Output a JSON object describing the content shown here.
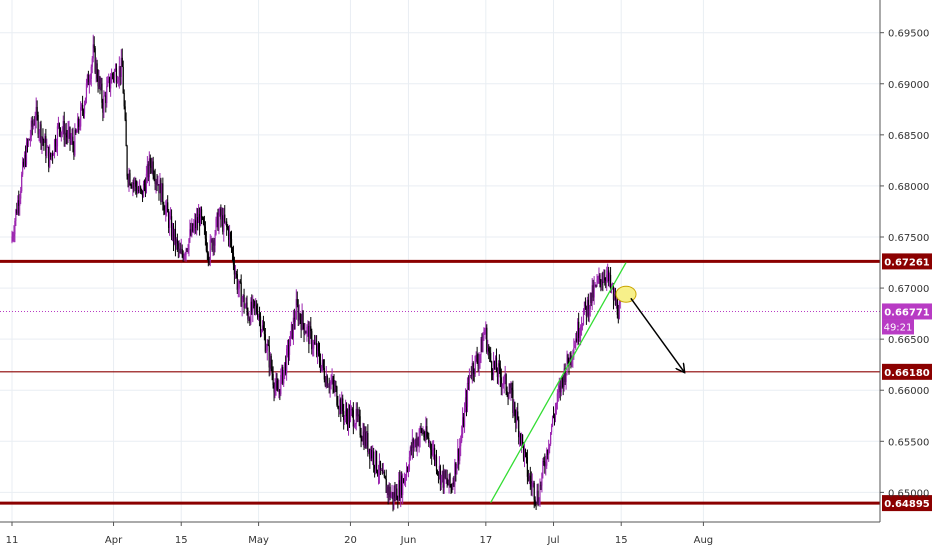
{
  "chart_data": {
    "type": "candlestick",
    "title": "",
    "xlabel": "",
    "ylabel": "",
    "ylim": [
      0.6471,
      0.6982
    ],
    "grid": true,
    "colors": {
      "up": "#9c27b0",
      "down": "#000000",
      "level": "#8b0000",
      "price_line": "#b83bc4",
      "trendline": "#33dd33",
      "axis_text": "#333333",
      "grid": "#e9eef3"
    },
    "x_axis_labels": [
      "11",
      "Apr",
      "15",
      "May",
      "20",
      "Jun",
      "17",
      "Jul",
      "15",
      "Aug"
    ],
    "y_axis_labels": [
      "0.69500",
      "0.69000",
      "0.68500",
      "0.68000",
      "0.67500",
      "0.67000",
      "0.66500",
      "0.66000",
      "0.65500",
      "0.65000"
    ],
    "y_axis_values": [
      0.695,
      0.69,
      0.685,
      0.68,
      0.675,
      0.67,
      0.665,
      0.66,
      0.655,
      0.65
    ],
    "x_axis_dates": [
      "2019-03-11",
      "2019-04-01",
      "2019-04-15",
      "2019-05-01",
      "2019-05-20",
      "2019-06-01",
      "2019-06-17",
      "2019-07-01",
      "2019-07-15",
      "2019-08-01"
    ],
    "price_levels": [
      {
        "label": "0.67261",
        "value": 0.67261,
        "style": "thick"
      },
      {
        "label": "0.66180",
        "value": 0.6618,
        "style": "thin"
      },
      {
        "label": "0.64895",
        "value": 0.64895,
        "style": "thick"
      }
    ],
    "current_price": {
      "label": "0.66771",
      "value": 0.66771,
      "countdown": "49:21"
    },
    "price_path": [
      [
        "2019-03-11",
        0.6745
      ],
      [
        "2019-03-14",
        0.683
      ],
      [
        "2019-03-16",
        0.687
      ],
      [
        "2019-03-19",
        0.6825
      ],
      [
        "2019-03-21",
        0.686
      ],
      [
        "2019-03-24",
        0.684
      ],
      [
        "2019-03-26",
        0.688
      ],
      [
        "2019-03-28",
        0.693
      ],
      [
        "2019-03-30",
        0.688
      ],
      [
        "2019-04-01",
        0.691
      ],
      [
        "2019-04-03",
        0.6915
      ],
      [
        "2019-04-04",
        0.6815
      ],
      [
        "2019-04-07",
        0.679
      ],
      [
        "2019-04-09",
        0.6825
      ],
      [
        "2019-04-11",
        0.6795
      ],
      [
        "2019-04-13",
        0.676
      ],
      [
        "2019-04-15",
        0.673
      ],
      [
        "2019-04-17",
        0.675
      ],
      [
        "2019-04-19",
        0.677
      ],
      [
        "2019-04-21",
        0.6735
      ],
      [
        "2019-04-23",
        0.677
      ],
      [
        "2019-04-25",
        0.6755
      ],
      [
        "2019-04-27",
        0.67
      ],
      [
        "2019-04-29",
        0.6675
      ],
      [
        "2019-05-01",
        0.668
      ],
      [
        "2019-05-03",
        0.664
      ],
      [
        "2019-05-05",
        0.6595
      ],
      [
        "2019-05-07",
        0.663
      ],
      [
        "2019-05-09",
        0.668
      ],
      [
        "2019-05-11",
        0.666
      ],
      [
        "2019-05-13",
        0.664
      ],
      [
        "2019-05-15",
        0.6615
      ],
      [
        "2019-05-17",
        0.66
      ],
      [
        "2019-05-19",
        0.6575
      ],
      [
        "2019-05-21",
        0.6575
      ],
      [
        "2019-05-23",
        0.6555
      ],
      [
        "2019-05-25",
        0.6535
      ],
      [
        "2019-05-27",
        0.651
      ],
      [
        "2019-05-29",
        0.6495
      ],
      [
        "2019-05-31",
        0.651
      ],
      [
        "2019-06-02",
        0.6545
      ],
      [
        "2019-06-04",
        0.656
      ],
      [
        "2019-06-06",
        0.6545
      ],
      [
        "2019-06-08",
        0.6515
      ],
      [
        "2019-06-10",
        0.6505
      ],
      [
        "2019-06-12",
        0.655
      ],
      [
        "2019-06-14",
        0.662
      ],
      [
        "2019-06-16",
        0.6635
      ],
      [
        "2019-06-17",
        0.666
      ],
      [
        "2019-06-18",
        0.663
      ],
      [
        "2019-06-20",
        0.6615
      ],
      [
        "2019-06-22",
        0.66
      ],
      [
        "2019-06-24",
        0.6565
      ],
      [
        "2019-06-26",
        0.6515
      ],
      [
        "2019-06-28",
        0.6495
      ],
      [
        "2019-06-29",
        0.652
      ],
      [
        "2019-07-01",
        0.657
      ],
      [
        "2019-07-03",
        0.661
      ],
      [
        "2019-07-05",
        0.664
      ],
      [
        "2019-07-07",
        0.667
      ],
      [
        "2019-07-09",
        0.669
      ],
      [
        "2019-07-11",
        0.671
      ],
      [
        "2019-07-12",
        0.6715
      ],
      [
        "2019-07-14",
        0.6685
      ],
      [
        "2019-07-15",
        0.6677
      ]
    ],
    "annotations": [
      {
        "type": "trendline",
        "from": [
          "2019-06-18",
          0.649
        ],
        "to": [
          "2019-07-16",
          0.6725
        ]
      },
      {
        "type": "ellipse",
        "at": [
          "2019-07-16",
          0.6694
        ]
      },
      {
        "type": "arrow",
        "from": [
          "2019-07-17",
          0.669
        ],
        "to": [
          "2019-07-28",
          0.6618
        ]
      }
    ]
  }
}
